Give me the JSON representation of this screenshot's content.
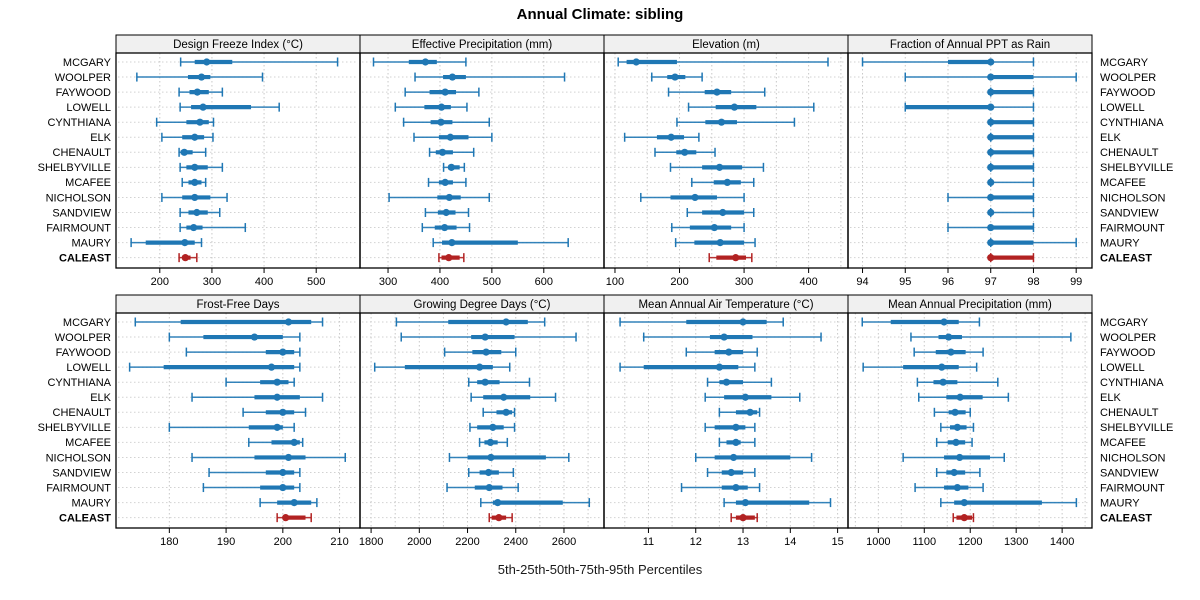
{
  "title": "Annual Climate: sibling",
  "caption": "5th-25th-50th-75th-95th Percentiles",
  "percentile_labels": [
    "5th",
    "25th",
    "50th",
    "75th",
    "95th"
  ],
  "stations": [
    "MCGARY",
    "WOOLPER",
    "FAYWOOD",
    "LOWELL",
    "CYNTHIANA",
    "ELK",
    "CHENAULT",
    "SHELBYVILLE",
    "MCAFEE",
    "NICHOLSON",
    "SANDVIEW",
    "FAIRMOUNT",
    "MAURY",
    "CALEAST"
  ],
  "highlight_station": "CALEAST",
  "colors": {
    "series_blue": "#1f77b4",
    "highlight_red": "#b22222",
    "strip_bg": "#f0f0f0",
    "panel_border": "#000000",
    "gridline": "#c8c8c8",
    "row_guide": "#d2d2d2",
    "text": "#000000"
  },
  "chart_data": [
    {
      "type": "dotplot",
      "title": "Design Freeze Index (°C)",
      "row": 0,
      "col": 0,
      "xlim": [
        116,
        584
      ],
      "ticks": [
        200,
        300,
        400,
        500
      ],
      "minor_step": null,
      "values": [
        [
          240,
          267,
          290,
          339,
          541
        ],
        [
          156,
          254,
          280,
          297,
          397
        ],
        [
          237,
          257,
          272,
          294,
          320
        ],
        [
          239,
          260,
          283,
          375,
          429
        ],
        [
          194,
          251,
          277,
          294,
          303
        ],
        [
          204,
          243,
          267,
          285,
          302
        ],
        [
          237,
          240,
          247,
          263,
          288
        ],
        [
          239,
          251,
          267,
          292,
          320
        ],
        [
          243,
          255,
          267,
          280,
          288
        ],
        [
          204,
          243,
          267,
          297,
          329
        ],
        [
          239,
          255,
          271,
          292,
          315
        ],
        [
          239,
          251,
          265,
          282,
          364
        ],
        [
          145,
          173,
          248,
          267,
          280
        ],
        [
          237,
          243,
          249,
          259,
          271
        ]
      ]
    },
    {
      "type": "dotplot",
      "title": "Effective Precipitation (mm)",
      "row": 0,
      "col": 1,
      "xlim": [
        246,
        716
      ],
      "ticks": [
        300,
        400,
        500,
        600
      ],
      "minor_step": null,
      "values": [
        [
          272,
          340,
          372,
          394,
          450
        ],
        [
          352,
          406,
          424,
          450,
          640
        ],
        [
          333,
          380,
          410,
          431,
          475
        ],
        [
          314,
          370,
          403,
          421,
          452
        ],
        [
          330,
          382,
          402,
          424,
          495
        ],
        [
          350,
          398,
          420,
          455,
          500
        ],
        [
          380,
          392,
          405,
          425,
          465
        ],
        [
          407,
          416,
          422,
          438,
          447
        ],
        [
          378,
          398,
          410,
          425,
          450
        ],
        [
          302,
          395,
          418,
          440,
          495
        ],
        [
          372,
          396,
          412,
          430,
          455
        ],
        [
          366,
          390,
          409,
          432,
          457
        ],
        [
          387,
          404,
          423,
          550,
          647
        ],
        [
          398,
          403,
          417,
          438,
          446
        ]
      ]
    },
    {
      "type": "dotplot",
      "title": "Elevation (m)",
      "row": 0,
      "col": 2,
      "xlim": [
        83,
        461
      ],
      "ticks": [
        100,
        200,
        300,
        400
      ],
      "minor_step": 50,
      "values": [
        [
          105,
          118,
          133,
          196,
          430
        ],
        [
          157,
          181,
          193,
          209,
          235
        ],
        [
          183,
          239,
          258,
          280,
          332
        ],
        [
          214,
          256,
          285,
          319,
          408
        ],
        [
          196,
          240,
          265,
          289,
          378
        ],
        [
          115,
          165,
          187,
          207,
          230
        ],
        [
          162,
          195,
          208,
          226,
          255
        ],
        [
          186,
          235,
          262,
          297,
          330
        ],
        [
          219,
          253,
          274,
          295,
          315
        ],
        [
          140,
          186,
          224,
          258,
          300
        ],
        [
          212,
          235,
          267,
          300,
          315
        ],
        [
          188,
          216,
          254,
          280,
          300
        ],
        [
          194,
          223,
          263,
          300,
          317
        ],
        [
          246,
          257,
          287,
          303,
          312
        ]
      ]
    },
    {
      "type": "dotplot",
      "title": "Fraction of Annual PPT as Rain",
      "row": 0,
      "col": 3,
      "xlim": [
        93.66,
        99.37
      ],
      "ticks": [
        94,
        95,
        96,
        97,
        98,
        99
      ],
      "minor_step": null,
      "values": [
        [
          94,
          96,
          97,
          97,
          98
        ],
        [
          95,
          97,
          97,
          98,
          99
        ],
        [
          97,
          97,
          97,
          98,
          98
        ],
        [
          95,
          95,
          97,
          97,
          98
        ],
        [
          97,
          97,
          97,
          98,
          98
        ],
        [
          97,
          97,
          97,
          98,
          98
        ],
        [
          97,
          97,
          97,
          98,
          98
        ],
        [
          97,
          97,
          97,
          98,
          98
        ],
        [
          97,
          97,
          97,
          97,
          98
        ],
        [
          96,
          97,
          97,
          98,
          98
        ],
        [
          97,
          97,
          97,
          97,
          98
        ],
        [
          96,
          97,
          97,
          98,
          98
        ],
        [
          97,
          97,
          97,
          98,
          99
        ],
        [
          97,
          97,
          97,
          98,
          98
        ]
      ]
    },
    {
      "type": "dotplot",
      "title": "Frost-Free Days",
      "row": 1,
      "col": 0,
      "xlim": [
        170.6,
        213.6
      ],
      "ticks": [
        180,
        190,
        200,
        210
      ],
      "minor_step": null,
      "values": [
        [
          174,
          182,
          201,
          205,
          207
        ],
        [
          180,
          186,
          195,
          200,
          203
        ],
        [
          183,
          197,
          200,
          202,
          203
        ],
        [
          173,
          179,
          198,
          202,
          203
        ],
        [
          190,
          196,
          199,
          201,
          202
        ],
        [
          184,
          195,
          199,
          203,
          207
        ],
        [
          193,
          197,
          200,
          202,
          204
        ],
        [
          180,
          194,
          199,
          200,
          202
        ],
        [
          194,
          198,
          202,
          203,
          203.5
        ],
        [
          184,
          195,
          201,
          204,
          211
        ],
        [
          187,
          197,
          200,
          202,
          203
        ],
        [
          186,
          196,
          200,
          202,
          203
        ],
        [
          196,
          199,
          202,
          205,
          206
        ],
        [
          199,
          200,
          200.5,
          204,
          205
        ]
      ]
    },
    {
      "type": "dotplot",
      "title": "Growing Degree Days (°C)",
      "row": 1,
      "col": 1,
      "xlim": [
        1754,
        2766
      ],
      "ticks": [
        1800,
        2000,
        2200,
        2400,
        2600
      ],
      "minor_step": 100,
      "values": [
        [
          1905,
          2120,
          2360,
          2450,
          2520
        ],
        [
          1925,
          2215,
          2273,
          2395,
          2650
        ],
        [
          2105,
          2220,
          2277,
          2340,
          2400
        ],
        [
          1815,
          1940,
          2250,
          2305,
          2375
        ],
        [
          2205,
          2240,
          2273,
          2333,
          2457
        ],
        [
          2215,
          2265,
          2350,
          2460,
          2565
        ],
        [
          2265,
          2320,
          2360,
          2385,
          2395
        ],
        [
          2210,
          2240,
          2305,
          2350,
          2395
        ],
        [
          2250,
          2270,
          2295,
          2325,
          2365
        ],
        [
          2125,
          2200,
          2297,
          2525,
          2620
        ],
        [
          2205,
          2250,
          2287,
          2330,
          2390
        ],
        [
          2115,
          2230,
          2290,
          2345,
          2410
        ],
        [
          2255,
          2305,
          2325,
          2595,
          2705
        ],
        [
          2290,
          2300,
          2330,
          2360,
          2385
        ]
      ]
    },
    {
      "type": "dotplot",
      "title": "Mean Annual Air Temperature (°C)",
      "row": 1,
      "col": 2,
      "xlim": [
        10.06,
        15.22
      ],
      "ticks": [
        11,
        12,
        13,
        14,
        15
      ],
      "minor_step": 0.5,
      "values": [
        [
          10.4,
          11.8,
          13.0,
          13.5,
          13.85
        ],
        [
          10.9,
          12.3,
          12.6,
          13.2,
          14.65
        ],
        [
          11.8,
          12.4,
          12.7,
          13.0,
          13.3
        ],
        [
          10.4,
          10.9,
          12.5,
          12.9,
          13.25
        ],
        [
          12.25,
          12.5,
          12.65,
          13.0,
          13.6
        ],
        [
          12.2,
          12.6,
          13.05,
          13.6,
          14.2
        ],
        [
          12.5,
          12.85,
          13.15,
          13.3,
          13.35
        ],
        [
          12.2,
          12.4,
          12.85,
          13.05,
          13.25
        ],
        [
          12.5,
          12.65,
          12.85,
          12.95,
          13.25
        ],
        [
          12.0,
          12.4,
          12.8,
          14.0,
          14.45
        ],
        [
          12.25,
          12.55,
          12.75,
          13.0,
          13.25
        ],
        [
          11.7,
          12.55,
          12.85,
          13.1,
          13.35
        ],
        [
          12.6,
          12.85,
          13.05,
          14.4,
          14.85
        ],
        [
          12.75,
          12.85,
          13.0,
          13.25,
          13.3
        ]
      ]
    },
    {
      "type": "dotplot",
      "title": "Mean Annual Precipitation (mm)",
      "row": 1,
      "col": 3,
      "xlim": [
        934,
        1465
      ],
      "ticks": [
        1000,
        1100,
        1200,
        1300,
        1400
      ],
      "minor_step": 50,
      "values": [
        [
          965,
          1027,
          1143,
          1175,
          1220
        ],
        [
          1071,
          1131,
          1153,
          1182,
          1419
        ],
        [
          1078,
          1125,
          1158,
          1190,
          1228
        ],
        [
          967,
          1054,
          1138,
          1175,
          1214
        ],
        [
          1085,
          1120,
          1141,
          1172,
          1260
        ],
        [
          1088,
          1148,
          1178,
          1227,
          1283
        ],
        [
          1122,
          1153,
          1167,
          1190,
          1200
        ],
        [
          1136,
          1156,
          1172,
          1192,
          1207
        ],
        [
          1127,
          1151,
          1169,
          1189,
          1204
        ],
        [
          1054,
          1143,
          1177,
          1243,
          1274
        ],
        [
          1127,
          1148,
          1165,
          1189,
          1221
        ],
        [
          1080,
          1143,
          1172,
          1196,
          1228
        ],
        [
          1136,
          1165,
          1187,
          1356,
          1431
        ],
        [
          1163,
          1170,
          1187,
          1204,
          1207
        ]
      ]
    }
  ]
}
